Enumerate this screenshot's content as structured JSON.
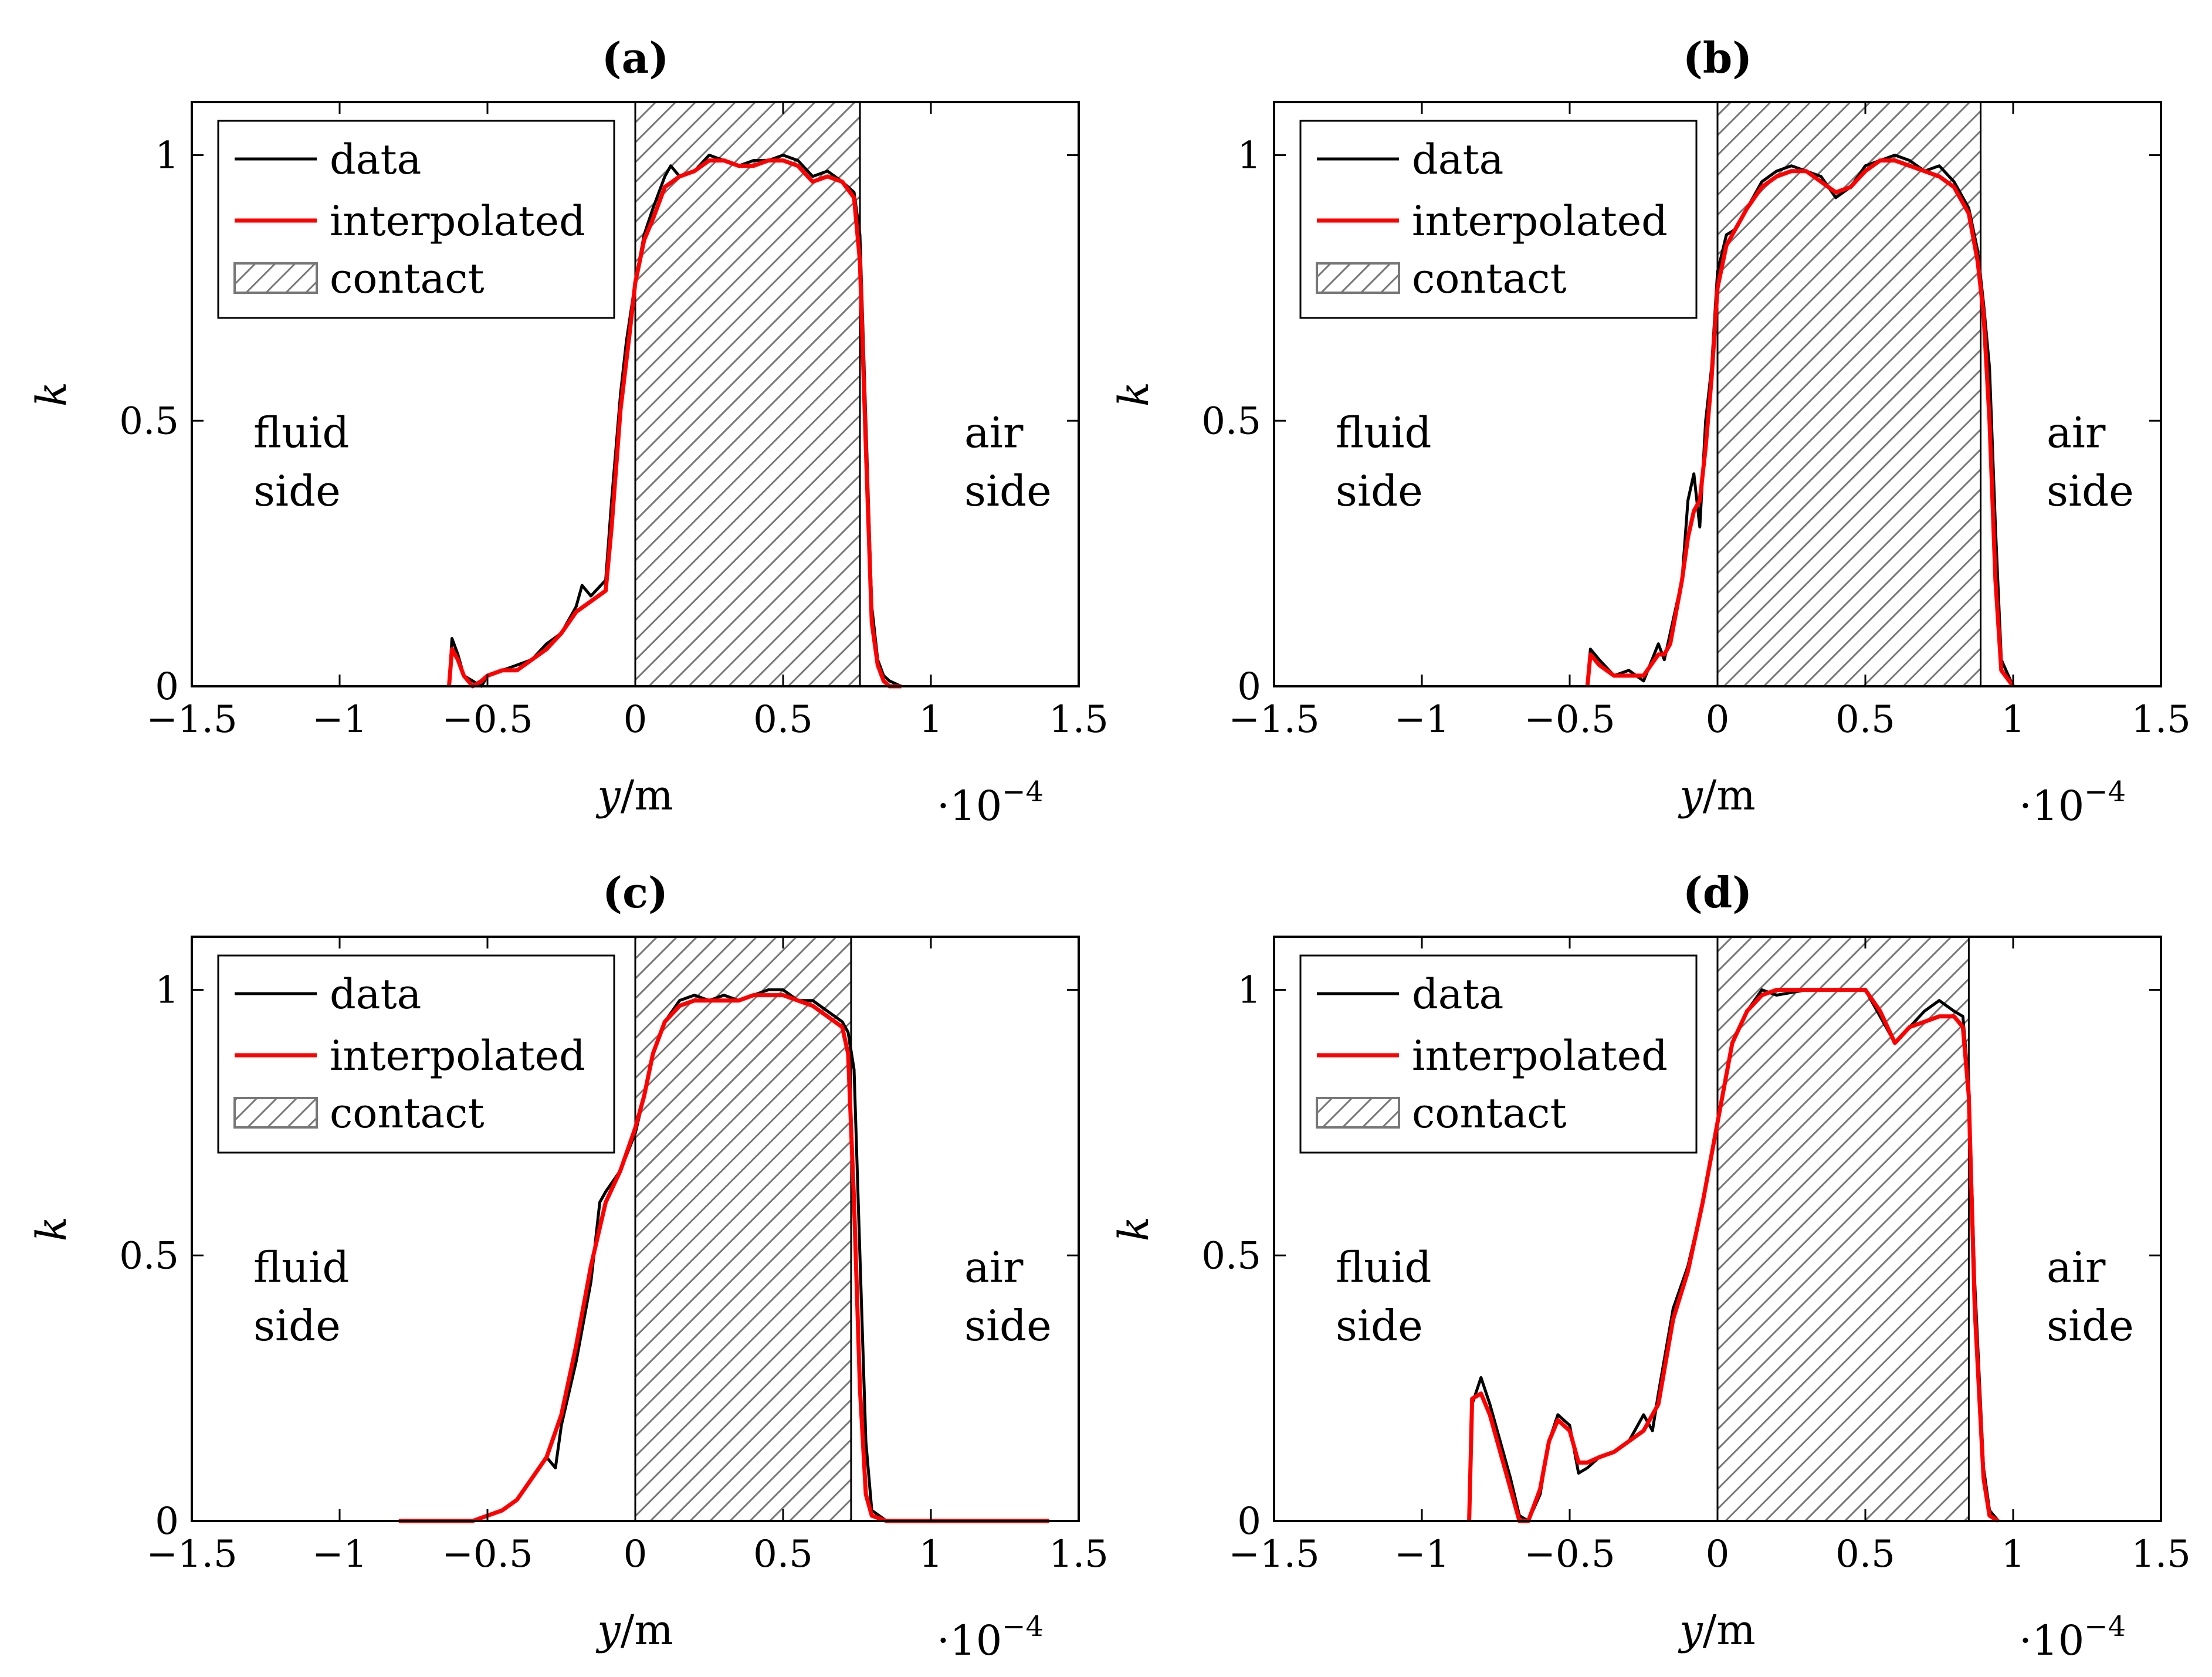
{
  "chart_data": [
    {
      "type": "line",
      "title": "(a)",
      "xlabel": "y/m",
      "ylabel": "k",
      "x_scale_note": "·10−4",
      "xlim": [
        -1.5,
        1.5
      ],
      "ylim": [
        0,
        1.1
      ],
      "xticks": [
        "−1.5",
        "−1",
        "−0.5",
        "0",
        "0.5",
        "1",
        "1.5"
      ],
      "yticks": [
        "0",
        "0.5",
        "1"
      ],
      "legend": {
        "position": "top-left",
        "entries": [
          "data",
          "interpolated",
          "contact"
        ]
      },
      "annotations": {
        "left_line1": "fluid",
        "left_line2": "side",
        "right_line1": "air",
        "right_line2": "side"
      },
      "contact": [
        0,
        0.76
      ],
      "series": [
        {
          "name": "data",
          "color": "#000000",
          "x": [
            -0.63,
            -0.62,
            -0.6,
            -0.58,
            -0.55,
            -0.52,
            -0.5,
            -0.45,
            -0.4,
            -0.35,
            -0.3,
            -0.25,
            -0.2,
            -0.18,
            -0.15,
            -0.1,
            -0.08,
            -0.05,
            -0.03,
            0,
            0.03,
            0.06,
            0.1,
            0.12,
            0.15,
            0.2,
            0.25,
            0.3,
            0.35,
            0.4,
            0.45,
            0.5,
            0.55,
            0.6,
            0.65,
            0.7,
            0.74,
            0.76,
            0.78,
            0.8,
            0.82,
            0.84,
            0.86,
            0.9
          ],
          "y": [
            0,
            0.09,
            0.06,
            0.02,
            0.01,
            0,
            0.02,
            0.03,
            0.04,
            0.05,
            0.08,
            0.1,
            0.15,
            0.19,
            0.17,
            0.2,
            0.35,
            0.55,
            0.65,
            0.76,
            0.85,
            0.9,
            0.96,
            0.98,
            0.96,
            0.97,
            1.0,
            0.99,
            0.98,
            0.99,
            0.99,
            1.0,
            0.99,
            0.96,
            0.97,
            0.95,
            0.93,
            0.85,
            0.5,
            0.15,
            0.05,
            0.02,
            0.01,
            0
          ]
        },
        {
          "name": "interpolated",
          "color": "#ff0000",
          "x": [
            -0.63,
            -0.62,
            -0.6,
            -0.58,
            -0.55,
            -0.52,
            -0.5,
            -0.45,
            -0.4,
            -0.35,
            -0.3,
            -0.25,
            -0.2,
            -0.15,
            -0.1,
            -0.08,
            -0.05,
            -0.02,
            0,
            0.03,
            0.06,
            0.1,
            0.15,
            0.2,
            0.25,
            0.3,
            0.35,
            0.4,
            0.45,
            0.5,
            0.55,
            0.6,
            0.65,
            0.7,
            0.74,
            0.76,
            0.78,
            0.8,
            0.82,
            0.84,
            0.86,
            0.9
          ],
          "y": [
            0,
            0.07,
            0.05,
            0.02,
            0.0,
            0.01,
            0.02,
            0.03,
            0.03,
            0.05,
            0.07,
            0.1,
            0.14,
            0.16,
            0.18,
            0.3,
            0.52,
            0.66,
            0.76,
            0.84,
            0.88,
            0.94,
            0.96,
            0.97,
            0.99,
            0.99,
            0.98,
            0.98,
            0.99,
            0.99,
            0.98,
            0.95,
            0.96,
            0.95,
            0.92,
            0.8,
            0.45,
            0.12,
            0.04,
            0.01,
            0.0,
            0
          ]
        }
      ]
    },
    {
      "type": "line",
      "title": "(b)",
      "xlabel": "y/m",
      "ylabel": "k",
      "x_scale_note": "·10−4",
      "xlim": [
        -1.5,
        1.5
      ],
      "ylim": [
        0,
        1.1
      ],
      "xticks": [
        "−1.5",
        "−1",
        "−0.5",
        "0",
        "0.5",
        "1",
        "1.5"
      ],
      "yticks": [
        "0",
        "0.5",
        "1"
      ],
      "legend": {
        "position": "top-left",
        "entries": [
          "data",
          "interpolated",
          "contact"
        ]
      },
      "annotations": {
        "left_line1": "fluid",
        "left_line2": "side",
        "right_line1": "air",
        "right_line2": "side"
      },
      "contact": [
        0,
        0.89
      ],
      "series": [
        {
          "name": "data",
          "color": "#000000",
          "x": [
            -0.44,
            -0.43,
            -0.4,
            -0.35,
            -0.3,
            -0.25,
            -0.2,
            -0.18,
            -0.16,
            -0.14,
            -0.12,
            -0.1,
            -0.08,
            -0.06,
            -0.04,
            -0.02,
            0,
            0.03,
            0.06,
            0.1,
            0.15,
            0.2,
            0.25,
            0.3,
            0.35,
            0.4,
            0.45,
            0.5,
            0.55,
            0.6,
            0.65,
            0.7,
            0.75,
            0.8,
            0.85,
            0.88,
            0.9,
            0.92,
            0.94,
            0.96,
            1.0
          ],
          "y": [
            0,
            0.07,
            0.05,
            0.02,
            0.03,
            0.01,
            0.08,
            0.05,
            0.1,
            0.15,
            0.2,
            0.35,
            0.4,
            0.3,
            0.5,
            0.6,
            0.78,
            0.85,
            0.86,
            0.9,
            0.95,
            0.97,
            0.98,
            0.97,
            0.96,
            0.92,
            0.94,
            0.98,
            0.99,
            1.0,
            0.99,
            0.97,
            0.98,
            0.95,
            0.9,
            0.82,
            0.72,
            0.6,
            0.3,
            0.05,
            0
          ]
        },
        {
          "name": "interpolated",
          "color": "#ff0000",
          "x": [
            -0.44,
            -0.43,
            -0.4,
            -0.35,
            -0.3,
            -0.25,
            -0.2,
            -0.18,
            -0.16,
            -0.14,
            -0.12,
            -0.1,
            -0.08,
            -0.06,
            -0.04,
            -0.02,
            0,
            0.03,
            0.06,
            0.1,
            0.15,
            0.2,
            0.25,
            0.3,
            0.35,
            0.4,
            0.45,
            0.5,
            0.55,
            0.6,
            0.65,
            0.7,
            0.75,
            0.8,
            0.85,
            0.88,
            0.9,
            0.92,
            0.94,
            0.96,
            1.0
          ],
          "y": [
            0,
            0.06,
            0.04,
            0.02,
            0.02,
            0.02,
            0.06,
            0.06,
            0.08,
            0.14,
            0.2,
            0.28,
            0.33,
            0.35,
            0.45,
            0.58,
            0.75,
            0.83,
            0.86,
            0.9,
            0.94,
            0.96,
            0.97,
            0.97,
            0.95,
            0.93,
            0.94,
            0.97,
            0.99,
            0.99,
            0.98,
            0.97,
            0.96,
            0.94,
            0.89,
            0.8,
            0.7,
            0.5,
            0.2,
            0.03,
            0
          ]
        }
      ]
    },
    {
      "type": "line",
      "title": "(c)",
      "xlabel": "y/m",
      "ylabel": "k",
      "x_scale_note": "·10−4",
      "xlim": [
        -1.5,
        1.5
      ],
      "ylim": [
        0,
        1.1
      ],
      "xticks": [
        "−1.5",
        "−1",
        "−0.5",
        "0",
        "0.5",
        "1",
        "1.5"
      ],
      "yticks": [
        "0",
        "0.5",
        "1"
      ],
      "legend": {
        "position": "top-left",
        "entries": [
          "data",
          "interpolated",
          "contact"
        ]
      },
      "annotations": {
        "left_line1": "fluid",
        "left_line2": "side",
        "right_line1": "air",
        "right_line2": "side"
      },
      "contact": [
        0,
        0.73
      ],
      "series": [
        {
          "name": "data",
          "color": "#000000",
          "x": [
            -0.8,
            -0.7,
            -0.6,
            -0.55,
            -0.5,
            -0.45,
            -0.4,
            -0.35,
            -0.3,
            -0.27,
            -0.25,
            -0.2,
            -0.15,
            -0.12,
            -0.1,
            -0.05,
            0,
            0.03,
            0.06,
            0.1,
            0.15,
            0.2,
            0.25,
            0.3,
            0.35,
            0.4,
            0.45,
            0.5,
            0.55,
            0.6,
            0.65,
            0.7,
            0.72,
            0.74,
            0.76,
            0.78,
            0.8,
            0.85,
            0.9,
            1.0,
            1.1,
            1.2,
            1.3,
            1.4
          ],
          "y": [
            0,
            0,
            0,
            0.0,
            0.01,
            0.02,
            0.04,
            0.08,
            0.12,
            0.1,
            0.18,
            0.3,
            0.45,
            0.6,
            0.62,
            0.66,
            0.73,
            0.8,
            0.88,
            0.94,
            0.98,
            0.99,
            0.98,
            0.99,
            0.98,
            0.99,
            1.0,
            1.0,
            0.98,
            0.98,
            0.96,
            0.94,
            0.92,
            0.85,
            0.5,
            0.15,
            0.02,
            0.0,
            0.0,
            0,
            0.0,
            0.0,
            0,
            0
          ]
        },
        {
          "name": "interpolated",
          "color": "#ff0000",
          "x": [
            -0.8,
            -0.7,
            -0.6,
            -0.55,
            -0.5,
            -0.45,
            -0.4,
            -0.35,
            -0.3,
            -0.25,
            -0.2,
            -0.15,
            -0.1,
            -0.05,
            0,
            0.03,
            0.06,
            0.1,
            0.15,
            0.2,
            0.25,
            0.3,
            0.35,
            0.4,
            0.45,
            0.5,
            0.55,
            0.6,
            0.65,
            0.7,
            0.72,
            0.74,
            0.76,
            0.78,
            0.8,
            0.85,
            0.9,
            1.0,
            1.1,
            1.2,
            1.3,
            1.4
          ],
          "y": [
            0,
            0,
            0,
            0.0,
            0.01,
            0.02,
            0.04,
            0.08,
            0.12,
            0.2,
            0.33,
            0.48,
            0.6,
            0.66,
            0.74,
            0.8,
            0.88,
            0.94,
            0.97,
            0.98,
            0.98,
            0.98,
            0.98,
            0.99,
            0.99,
            0.99,
            0.98,
            0.97,
            0.95,
            0.93,
            0.88,
            0.6,
            0.25,
            0.05,
            0.01,
            0.0,
            0.0,
            0,
            0,
            0,
            0,
            0
          ]
        }
      ]
    },
    {
      "type": "line",
      "title": "(d)",
      "xlabel": "y/m",
      "ylabel": "k",
      "x_scale_note": "·10−4",
      "xlim": [
        -1.5,
        1.5
      ],
      "ylim": [
        0,
        1.1
      ],
      "xticks": [
        "−1.5",
        "−1",
        "−0.5",
        "0",
        "0.5",
        "1",
        "1.5"
      ],
      "yticks": [
        "0",
        "0.5",
        "1"
      ],
      "legend": {
        "position": "top-left",
        "entries": [
          "data",
          "interpolated",
          "contact"
        ]
      },
      "annotations": {
        "left_line1": "fluid",
        "left_line2": "side",
        "right_line1": "air",
        "right_line2": "side"
      },
      "contact": [
        0,
        0.85
      ],
      "series": [
        {
          "name": "data",
          "color": "#000000",
          "x": [
            -0.84,
            -0.83,
            -0.8,
            -0.77,
            -0.74,
            -0.7,
            -0.67,
            -0.64,
            -0.6,
            -0.57,
            -0.54,
            -0.5,
            -0.47,
            -0.44,
            -0.4,
            -0.35,
            -0.3,
            -0.25,
            -0.22,
            -0.2,
            -0.15,
            -0.1,
            -0.05,
            0,
            0.05,
            0.1,
            0.15,
            0.2,
            0.3,
            0.4,
            0.5,
            0.55,
            0.6,
            0.65,
            0.7,
            0.75,
            0.8,
            0.83,
            0.85,
            0.87,
            0.9,
            0.92,
            0.95
          ],
          "y": [
            0,
            0.22,
            0.27,
            0.22,
            0.16,
            0.08,
            0.01,
            0.0,
            0.05,
            0.15,
            0.2,
            0.18,
            0.09,
            0.1,
            0.12,
            0.13,
            0.15,
            0.2,
            0.17,
            0.24,
            0.4,
            0.48,
            0.6,
            0.75,
            0.9,
            0.96,
            1.0,
            0.99,
            1.0,
            1.0,
            1.0,
            0.95,
            0.9,
            0.93,
            0.96,
            0.98,
            0.96,
            0.95,
            0.82,
            0.45,
            0.1,
            0.02,
            0
          ]
        },
        {
          "name": "interpolated",
          "color": "#ff0000",
          "x": [
            -0.84,
            -0.83,
            -0.8,
            -0.77,
            -0.74,
            -0.7,
            -0.67,
            -0.64,
            -0.6,
            -0.57,
            -0.54,
            -0.5,
            -0.47,
            -0.44,
            -0.4,
            -0.35,
            -0.3,
            -0.25,
            -0.2,
            -0.15,
            -0.1,
            -0.05,
            0,
            0.05,
            0.1,
            0.15,
            0.2,
            0.3,
            0.4,
            0.5,
            0.55,
            0.6,
            0.65,
            0.7,
            0.75,
            0.8,
            0.83,
            0.85,
            0.87,
            0.9,
            0.92,
            0.95
          ],
          "y": [
            0,
            0.23,
            0.24,
            0.2,
            0.14,
            0.06,
            0.0,
            0.0,
            0.06,
            0.15,
            0.19,
            0.17,
            0.11,
            0.11,
            0.12,
            0.13,
            0.15,
            0.17,
            0.22,
            0.38,
            0.47,
            0.6,
            0.75,
            0.9,
            0.96,
            0.99,
            1.0,
            1.0,
            1.0,
            1.0,
            0.96,
            0.9,
            0.93,
            0.94,
            0.95,
            0.95,
            0.93,
            0.8,
            0.4,
            0.08,
            0.01,
            0
          ]
        }
      ]
    }
  ]
}
